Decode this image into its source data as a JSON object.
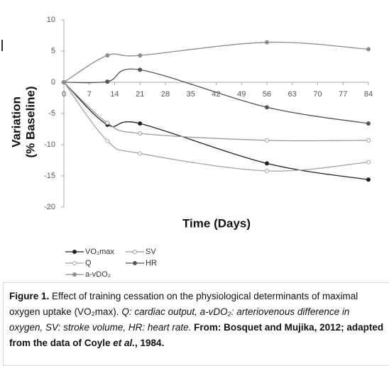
{
  "chart_data": {
    "type": "line",
    "xlabel": "Time (Days)",
    "ylabel": [
      "Variation",
      "(% Baseline)"
    ],
    "x": [
      0,
      12,
      21,
      56,
      84
    ],
    "series": [
      {
        "name": "VO₂max",
        "color": "#222222",
        "marker": "filled",
        "values": [
          0,
          -6.8,
          -6.6,
          -13,
          -15.6
        ]
      },
      {
        "name": "SV",
        "color": "#9a9a9a",
        "marker": "open",
        "values": [
          0,
          -6.5,
          -8.2,
          -9.3,
          -9.3
        ]
      },
      {
        "name": "Q",
        "color": "#a5a5a5",
        "marker": "open",
        "values": [
          0,
          -9.4,
          -11.4,
          -14.2,
          -12.8
        ]
      },
      {
        "name": "HR",
        "color": "#555555",
        "marker": "filled",
        "values": [
          0,
          0.1,
          2.0,
          -4,
          -6.6
        ]
      },
      {
        "name": "a-vDO₂",
        "color": "#8c8c8c",
        "marker": "filled",
        "values": [
          0,
          4.3,
          4.3,
          6.4,
          5.3
        ]
      }
    ],
    "xlim": [
      0,
      84
    ],
    "xticks": [
      0,
      7,
      14,
      21,
      28,
      35,
      42,
      49,
      56,
      63,
      70,
      77,
      84
    ],
    "ylim": [
      -20,
      10
    ],
    "yticks": [
      -20,
      -15,
      -10,
      -5,
      0,
      5,
      10
    ],
    "grid": false
  },
  "caption": [
    "Figure 1.",
    " Effect of training cessation on the physiological determinants of maximal oxygen uptake (VO₂max). ",
    "Q: cardiac output, a-vDO₂: arteriovenous difference in oxygen, SV: stroke volume, HR: heart rate.",
    " From: Bosquet and Mujika, 2012; adapted from the data of Coyle ",
    "et al.",
    ", 1984."
  ]
}
